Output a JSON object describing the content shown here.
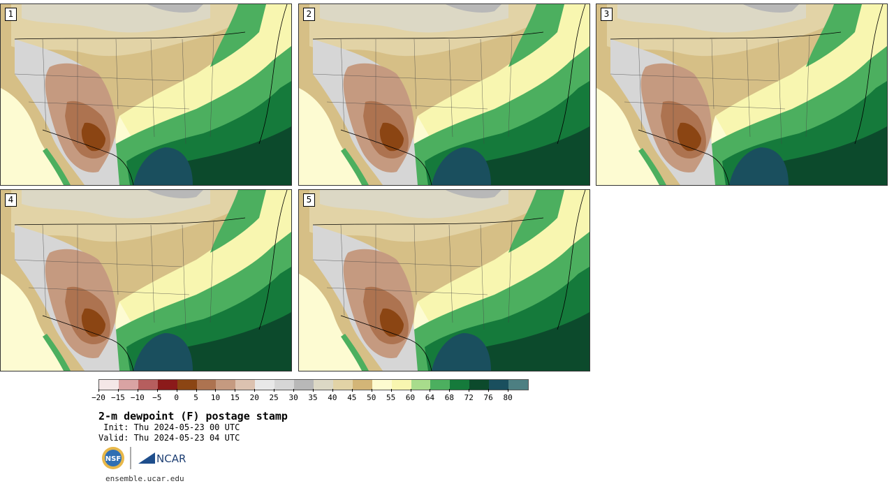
{
  "panels": [
    {
      "label": "1"
    },
    {
      "label": "2"
    },
    {
      "label": "3"
    },
    {
      "label": "4"
    },
    {
      "label": "5"
    }
  ],
  "colorbar": {
    "colors": [
      "#f4e7e7",
      "#d9a3a3",
      "#b65e5e",
      "#8b1a1a",
      "#8b4513",
      "#ad7350",
      "#c59a80",
      "#dcc2b0",
      "#e8e8e8",
      "#d6d6d6",
      "#b8b8b8",
      "#dcd8c5",
      "#e2d3a6",
      "#d3b577",
      "#fdfbd0",
      "#f8f6b0",
      "#a8dc8c",
      "#4caf5f",
      "#157a3b",
      "#0c4a2c",
      "#1a4f5e",
      "#4d7f82"
    ],
    "tick_labels": [
      "−20",
      "−15",
      "−10",
      "−5",
      "0",
      "5",
      "10",
      "15",
      "20",
      "25",
      "30",
      "35",
      "40",
      "45",
      "50",
      "55",
      "60",
      "64",
      "68",
      "72",
      "76",
      "80"
    ]
  },
  "title": "2-m dewpoint (F) postage stamp",
  "init_line": " Init: Thu 2024-05-23 00 UTC",
  "valid_line": "Valid: Thu 2024-05-23 04 UTC",
  "logos": {
    "nsf_text": "NSF",
    "ncar_text": "NCAR"
  },
  "footer_url": "ensemble.ucar.edu"
}
